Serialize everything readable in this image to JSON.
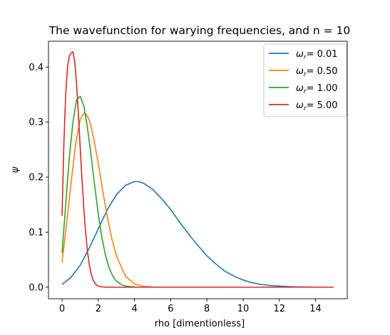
{
  "chart_data": {
    "type": "line",
    "title": "The wavefunction for warying frequencies, and n = 10",
    "xlabel": "rho [dimentionless]",
    "ylabel": "ψ",
    "xlim": [
      -0.75,
      15.75
    ],
    "ylim": [
      -0.021,
      0.447
    ],
    "xticks": [
      0,
      2,
      4,
      6,
      8,
      10,
      12,
      14
    ],
    "yticks": [
      0.0,
      0.1,
      0.2,
      0.3,
      0.4
    ],
    "xtick_labels": [
      "0",
      "2",
      "4",
      "6",
      "8",
      "10",
      "12",
      "14"
    ],
    "ytick_labels": [
      "0.0",
      "0.1",
      "0.2",
      "0.3",
      "0.4"
    ],
    "grid": false,
    "legend_position": "upper right",
    "series": [
      {
        "name": "ωr= 0.01",
        "legend_base": "ω",
        "legend_sub": "r",
        "legend_value": "= 0.01",
        "color": "#1f77b4",
        "x": [
          0.0,
          0.5,
          1.0,
          1.5,
          2.0,
          2.5,
          3.0,
          3.5,
          4.0,
          4.2,
          4.5,
          5.0,
          5.5,
          6.0,
          6.5,
          7.0,
          7.5,
          8.0,
          8.5,
          9.0,
          9.5,
          10.0,
          10.5,
          11.0,
          11.5,
          12.0,
          12.5,
          13.0,
          13.5,
          14.0,
          14.5,
          15.0
        ],
        "y": [
          0.005,
          0.018,
          0.04,
          0.071,
          0.106,
          0.141,
          0.168,
          0.185,
          0.192,
          0.192,
          0.189,
          0.178,
          0.161,
          0.141,
          0.118,
          0.096,
          0.076,
          0.057,
          0.042,
          0.029,
          0.02,
          0.013,
          0.008,
          0.005,
          0.003,
          0.002,
          0.001,
          0.0005,
          0.0002,
          0.0001,
          0.0,
          0.0
        ]
      },
      {
        "name": "ωr= 0.50",
        "legend_base": "ω",
        "legend_sub": "r",
        "legend_value": "= 0.50",
        "color": "#ff7f0e",
        "x": [
          0.0,
          0.25,
          0.5,
          0.75,
          1.0,
          1.25,
          1.5,
          1.75,
          2.0,
          2.25,
          2.5,
          2.75,
          3.0,
          3.5,
          4.0,
          4.5,
          5.0,
          6.0,
          8.0,
          10.0,
          12.0,
          15.0
        ],
        "y": [
          0.045,
          0.115,
          0.19,
          0.26,
          0.305,
          0.318,
          0.305,
          0.27,
          0.225,
          0.175,
          0.128,
          0.088,
          0.057,
          0.02,
          0.006,
          0.0015,
          0.0003,
          0.0,
          0.0,
          0.0,
          0.0,
          0.0
        ]
      },
      {
        "name": "ωr= 1.00",
        "legend_base": "ω",
        "legend_sub": "r",
        "legend_value": "= 1.00",
        "color": "#2ca02c",
        "x": [
          0.0,
          0.2,
          0.4,
          0.6,
          0.8,
          1.0,
          1.2,
          1.4,
          1.6,
          1.8,
          2.0,
          2.2,
          2.4,
          2.6,
          2.8,
          3.0,
          3.3,
          3.6,
          4.0,
          5.0,
          8.0,
          15.0
        ],
        "y": [
          0.062,
          0.15,
          0.235,
          0.3,
          0.34,
          0.347,
          0.33,
          0.29,
          0.24,
          0.185,
          0.133,
          0.09,
          0.058,
          0.035,
          0.02,
          0.011,
          0.004,
          0.0015,
          0.0003,
          0.0,
          0.0,
          0.0
        ]
      },
      {
        "name": "ωr= 5.00",
        "legend_base": "ω",
        "legend_sub": "r",
        "legend_value": "= 5.00",
        "color": "#d62728",
        "x": [
          0.0,
          0.1,
          0.2,
          0.3,
          0.4,
          0.5,
          0.6,
          0.7,
          0.8,
          0.9,
          1.0,
          1.1,
          1.2,
          1.3,
          1.4,
          1.5,
          1.6,
          1.7,
          1.8,
          1.9,
          2.0,
          2.2,
          2.4,
          2.6,
          3.0,
          4.0,
          15.0
        ],
        "y": [
          0.13,
          0.26,
          0.35,
          0.4,
          0.42,
          0.425,
          0.428,
          0.41,
          0.37,
          0.315,
          0.255,
          0.196,
          0.144,
          0.1,
          0.066,
          0.042,
          0.025,
          0.014,
          0.008,
          0.004,
          0.002,
          0.0005,
          0.0001,
          0.0,
          0.0,
          0.0,
          0.0
        ]
      }
    ]
  }
}
